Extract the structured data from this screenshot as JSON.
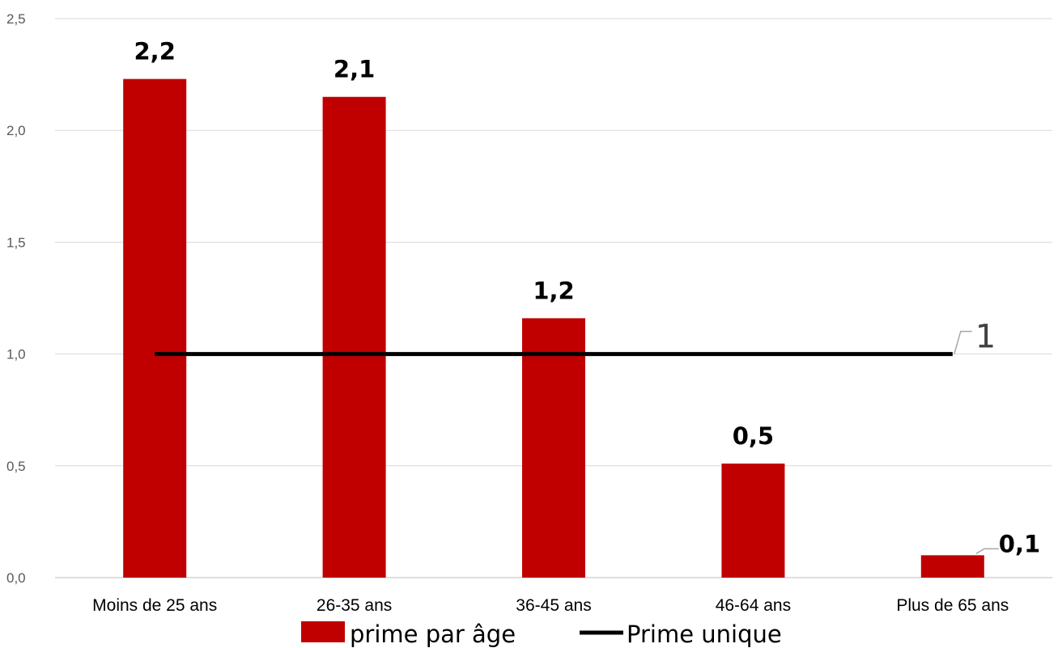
{
  "chart_data": {
    "type": "bar",
    "categories": [
      "Moins de 25 ans",
      "26-35 ans",
      "36-45 ans",
      "46-64 ans",
      "Plus de 65 ans"
    ],
    "series": [
      {
        "name": "prime par âge",
        "type": "bar",
        "values": [
          2.23,
          2.15,
          1.16,
          0.51,
          0.1
        ],
        "labels": [
          "2,2",
          "2,1",
          "1,2",
          "0,5",
          "0,1"
        ],
        "color": "#C00000"
      },
      {
        "name": "Prime unique",
        "type": "line",
        "values": [
          1,
          1,
          1,
          1,
          1
        ],
        "end_label": "1",
        "color": "#000000"
      }
    ],
    "ylim": [
      0,
      2.5
    ],
    "yticks": [
      0,
      0.5,
      1.0,
      1.5,
      2.0,
      2.5
    ],
    "ytick_labels": [
      "0,0",
      "0,5",
      "1,0",
      "1,5",
      "2,0",
      "2,5"
    ],
    "grid": true,
    "legend": "bottom",
    "title": "",
    "xlabel": "",
    "ylabel": ""
  }
}
